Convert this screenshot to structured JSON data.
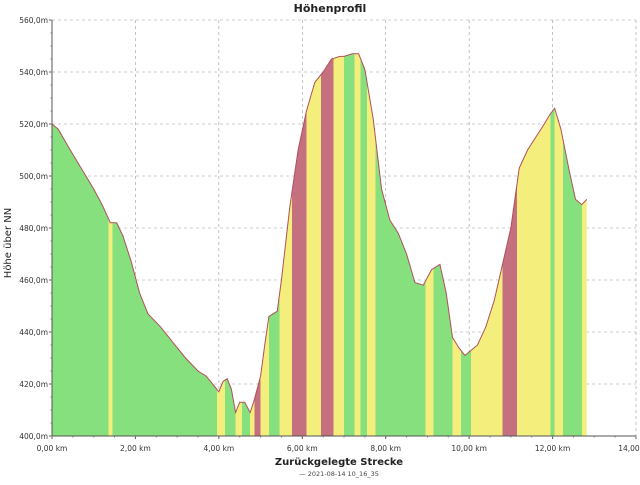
{
  "chart_data": {
    "type": "area",
    "title": "Höhenprofil",
    "xlabel": "Zurückgelegte Strecke",
    "ylabel": "Höhe über NN",
    "legend": "— 2021-08-14 10_16_35",
    "legend_placement": "bottom-center",
    "grid": true,
    "xlim": [
      0,
      14
    ],
    "ylim": [
      400,
      560
    ],
    "x_ticks": [
      {
        "value": 0,
        "label": "0,00 km"
      },
      {
        "value": 2,
        "label": "2,00 km"
      },
      {
        "value": 4,
        "label": "4,00 km"
      },
      {
        "value": 6,
        "label": "6,00 km"
      },
      {
        "value": 8,
        "label": "8,00 km"
      },
      {
        "value": 10,
        "label": "10,00 km"
      },
      {
        "value": 12,
        "label": "12,00 km"
      },
      {
        "value": 14,
        "label": "14,00 km"
      }
    ],
    "y_ticks": [
      {
        "value": 400,
        "label": "400,0m"
      },
      {
        "value": 420,
        "label": "420,0m"
      },
      {
        "value": 440,
        "label": "440,0m"
      },
      {
        "value": 460,
        "label": "460,0m"
      },
      {
        "value": 480,
        "label": "480,0m"
      },
      {
        "value": 500,
        "label": "500,0m"
      },
      {
        "value": 520,
        "label": "520,0m"
      },
      {
        "value": 540,
        "label": "540,0m"
      },
      {
        "value": 560,
        "label": "560,0m"
      }
    ],
    "colors": {
      "green": "#86e07e",
      "yellow": "#f4ee7c",
      "red": "#c4707f",
      "line": "#b0505a",
      "grid": "#9a9a9a"
    },
    "series": [
      {
        "name": "2021-08-14 10_16_35",
        "x": [
          0,
          0.15,
          0.4,
          0.7,
          1.0,
          1.2,
          1.4,
          1.55,
          1.7,
          1.9,
          2.1,
          2.3,
          2.6,
          2.9,
          3.2,
          3.5,
          3.7,
          3.85,
          4.0,
          4.1,
          4.2,
          4.3,
          4.4,
          4.5,
          4.62,
          4.75,
          4.85,
          5.0,
          5.1,
          5.2,
          5.3,
          5.4,
          5.5,
          5.7,
          5.9,
          6.1,
          6.3,
          6.5,
          6.7,
          6.9,
          7.0,
          7.2,
          7.35,
          7.5,
          7.7,
          7.9,
          8.1,
          8.3,
          8.5,
          8.7,
          8.9,
          9.1,
          9.3,
          9.45,
          9.6,
          9.75,
          9.9,
          10.05,
          10.2,
          10.4,
          10.6,
          10.8,
          11.0,
          11.2,
          11.4,
          11.6,
          11.8,
          11.95,
          12.05,
          12.2,
          12.4,
          12.55,
          12.7,
          12.82
        ],
        "values": [
          520,
          518,
          511,
          503,
          495,
          489,
          482,
          482,
          477,
          467,
          455,
          447,
          442,
          436,
          430,
          425,
          423,
          420,
          417,
          421,
          422,
          418,
          409,
          413,
          413,
          409,
          414,
          423,
          435,
          446,
          447,
          448,
          460,
          488,
          510,
          525,
          536,
          540,
          545,
          546,
          546,
          547,
          547,
          541,
          522,
          495,
          483,
          478,
          470,
          459,
          458,
          464,
          466,
          455,
          438,
          434,
          431,
          433,
          435,
          442,
          452,
          466,
          480,
          503,
          510,
          515,
          520,
          524,
          526,
          518,
          502,
          491,
          489,
          491
        ]
      }
    ],
    "colored_bands": [
      {
        "x": [
          0,
          1.35
        ],
        "color": "green"
      },
      {
        "x": [
          1.35,
          1.45
        ],
        "color": "yellow"
      },
      {
        "x": [
          1.45,
          3.95
        ],
        "color": "green"
      },
      {
        "x": [
          3.95,
          4.15
        ],
        "color": "yellow"
      },
      {
        "x": [
          4.15,
          4.4
        ],
        "color": "green"
      },
      {
        "x": [
          4.4,
          4.55
        ],
        "color": "yellow"
      },
      {
        "x": [
          4.55,
          4.75
        ],
        "color": "green"
      },
      {
        "x": [
          4.75,
          4.85
        ],
        "color": "yellow"
      },
      {
        "x": [
          4.85,
          5.0
        ],
        "color": "red"
      },
      {
        "x": [
          5.0,
          5.2
        ],
        "color": "yellow"
      },
      {
        "x": [
          5.2,
          5.45
        ],
        "color": "green"
      },
      {
        "x": [
          5.45,
          5.75
        ],
        "color": "yellow"
      },
      {
        "x": [
          5.75,
          6.1
        ],
        "color": "red"
      },
      {
        "x": [
          6.1,
          6.45
        ],
        "color": "yellow"
      },
      {
        "x": [
          6.45,
          6.75
        ],
        "color": "red"
      },
      {
        "x": [
          6.75,
          7.0
        ],
        "color": "yellow"
      },
      {
        "x": [
          7.0,
          7.25
        ],
        "color": "green"
      },
      {
        "x": [
          7.25,
          7.4
        ],
        "color": "yellow"
      },
      {
        "x": [
          7.4,
          7.55
        ],
        "color": "green"
      },
      {
        "x": [
          7.55,
          7.75
        ],
        "color": "yellow"
      },
      {
        "x": [
          7.75,
          8.95
        ],
        "color": "green"
      },
      {
        "x": [
          8.95,
          9.15
        ],
        "color": "yellow"
      },
      {
        "x": [
          9.15,
          9.6
        ],
        "color": "green"
      },
      {
        "x": [
          9.6,
          9.8
        ],
        "color": "yellow"
      },
      {
        "x": [
          9.8,
          10.05
        ],
        "color": "green"
      },
      {
        "x": [
          10.05,
          10.3
        ],
        "color": "yellow"
      },
      {
        "x": [
          10.3,
          10.55
        ],
        "color": "yellow"
      },
      {
        "x": [
          10.55,
          10.8
        ],
        "color": "yellow"
      },
      {
        "x": [
          10.8,
          11.15
        ],
        "color": "red"
      },
      {
        "x": [
          11.15,
          11.55
        ],
        "color": "yellow"
      },
      {
        "x": [
          11.55,
          11.95
        ],
        "color": "yellow"
      },
      {
        "x": [
          11.95,
          12.05
        ],
        "color": "green"
      },
      {
        "x": [
          12.05,
          12.25
        ],
        "color": "yellow"
      },
      {
        "x": [
          12.25,
          12.7
        ],
        "color": "green"
      },
      {
        "x": [
          12.7,
          12.82
        ],
        "color": "yellow"
      }
    ]
  }
}
